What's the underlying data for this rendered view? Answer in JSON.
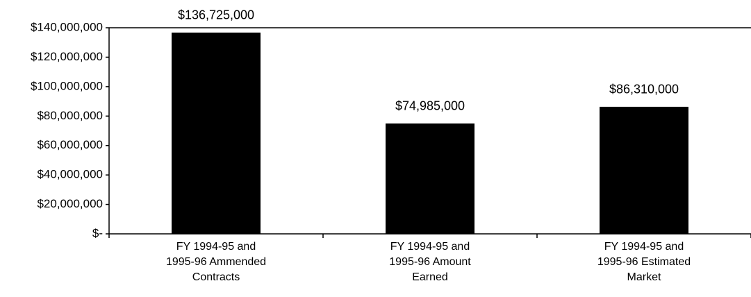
{
  "chart_data": {
    "type": "bar",
    "categories": [
      [
        "FY 1994-95 and",
        "1995-96 Ammended",
        "Contracts"
      ],
      [
        "FY 1994-95 and",
        "1995-96 Amount",
        "Earned"
      ],
      [
        "FY 1994-95 and",
        "1995-96 Estimated",
        "Market"
      ]
    ],
    "values": [
      136725000,
      74985000,
      86310000
    ],
    "value_labels": [
      "$136,725,000",
      "$74,985,000",
      "$86,310,000"
    ],
    "color": "#000000",
    "ylim": [
      0,
      140000000
    ],
    "yticks": [
      {
        "value": 0,
        "label": "$-"
      },
      {
        "value": 20000000,
        "label": "$20,000,000"
      },
      {
        "value": 40000000,
        "label": "$40,000,000"
      },
      {
        "value": 60000000,
        "label": "$60,000,000"
      },
      {
        "value": 80000000,
        "label": "$80,000,000"
      },
      {
        "value": 100000000,
        "label": "$100,000,000"
      },
      {
        "value": 120000000,
        "label": "$120,000,000"
      },
      {
        "value": 140000000,
        "label": "$140,000,000"
      }
    ],
    "grid": false
  }
}
